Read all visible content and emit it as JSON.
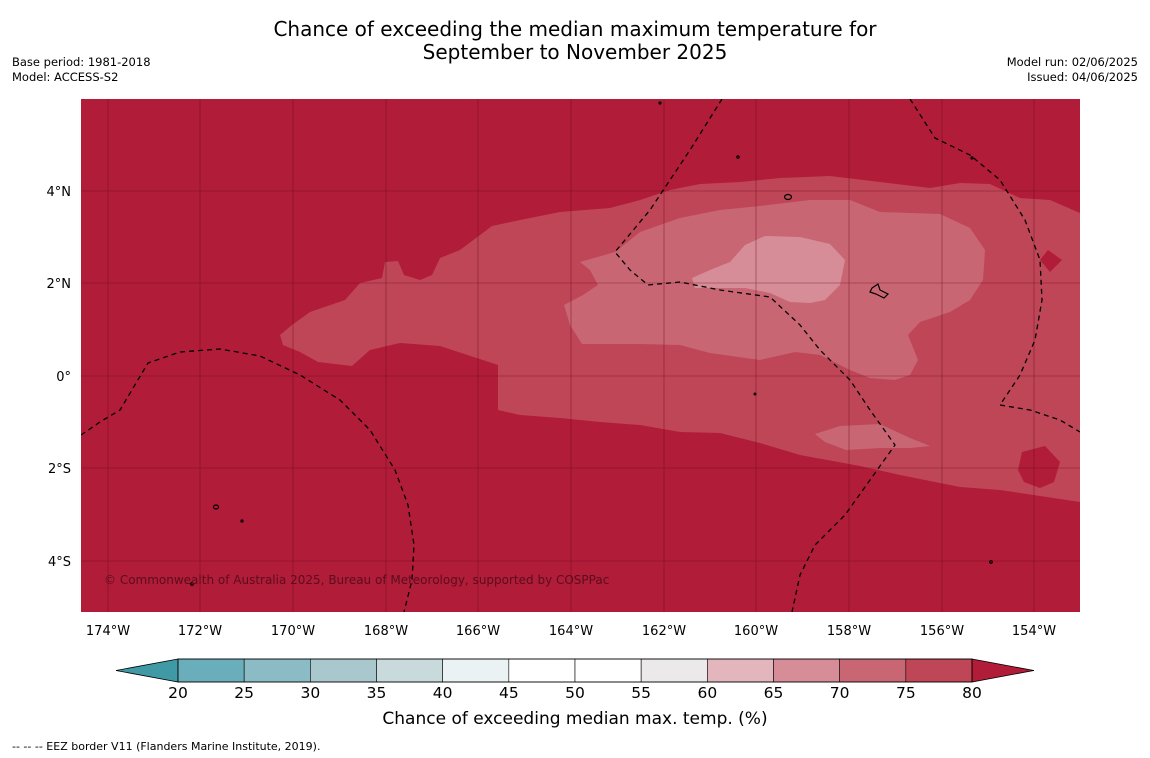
{
  "header": {
    "title_line1": "Chance of exceeding the median maximum temperature for",
    "title_line2": "September to November 2025",
    "base_period": "Base period: 1981-2018",
    "model": "Model: ACCESS-S2",
    "model_run": "Model run: 02/06/2025",
    "issued": "Issued: 04/06/2025"
  },
  "map": {
    "x_ticks": [
      "174°W",
      "172°W",
      "170°W",
      "168°W",
      "166°W",
      "164°W",
      "162°W",
      "160°W",
      "158°W",
      "156°W",
      "154°W"
    ],
    "y_ticks": [
      "4°N",
      "2°N",
      "0°",
      "2°S",
      "4°S"
    ],
    "copyright": "© Commonwealth of Australia 2025, Bureau of Meteorology, supported by COSPPac"
  },
  "colorbar": {
    "labels": [
      "20",
      "25",
      "30",
      "35",
      "40",
      "45",
      "50",
      "55",
      "60",
      "65",
      "70",
      "75",
      "80"
    ],
    "colors": {
      "below_20": "#3f9aa6",
      "bins": [
        "#6aaebb",
        "#8bbcc6",
        "#a9c8ce",
        "#c9dadd",
        "#ebf2f3",
        "#ffffff",
        "#ffffff",
        "#ebe9e9",
        "#e2b6bc",
        "#d68d98",
        "#c96674",
        "#bf4656"
      ],
      "above_80": "#b11c38"
    },
    "title": "Chance of exceeding median max. temp. (%)"
  },
  "footer": {
    "eez_note": "--  --  -- EEZ border V11 (Flanders Marine Institute, 2019)."
  }
}
